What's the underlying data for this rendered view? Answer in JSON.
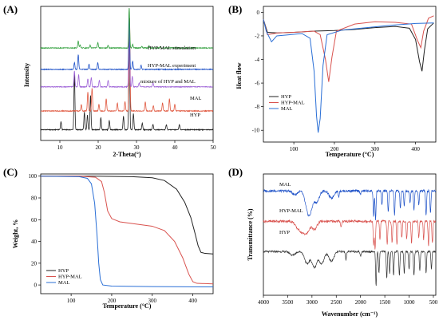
{
  "panels": [
    {
      "label": "(A)",
      "chart_data": {
        "type": "line",
        "xlabel": "2-Theta(°)",
        "ylabel": "Intensity",
        "xlim": [
          5,
          50
        ],
        "x_ticks": [
          10,
          20,
          30,
          40,
          50
        ],
        "series": [
          {
            "name": "HYP",
            "color": "#222222",
            "baseline": 0.08,
            "peaks": [
              [
                10.3,
                0.06
              ],
              [
                13.8,
                0.42
              ],
              [
                16.4,
                0.13
              ],
              [
                17.2,
                0.11
              ],
              [
                18.0,
                0.26
              ],
              [
                20.7,
                0.09
              ],
              [
                22.9,
                0.07
              ],
              [
                26.6,
                0.1
              ],
              [
                28.1,
                0.9
              ],
              [
                29.2,
                0.12
              ],
              [
                31.5,
                0.05
              ],
              [
                34.3,
                0.04
              ],
              [
                37.8,
                0.04
              ],
              [
                41.2,
                0.04
              ]
            ]
          },
          {
            "name": "MAL",
            "color": "#e0573e",
            "baseline": 0.22,
            "peaks": [
              [
                15.6,
                0.05
              ],
              [
                17.3,
                0.14
              ],
              [
                18.4,
                0.17
              ],
              [
                20.2,
                0.05
              ],
              [
                22.1,
                0.09
              ],
              [
                25.0,
                0.06
              ],
              [
                27.0,
                0.07
              ],
              [
                28.2,
                0.7
              ],
              [
                32.3,
                0.07
              ],
              [
                34.4,
                0.04
              ],
              [
                36.8,
                0.06
              ],
              [
                38.6,
                0.09
              ],
              [
                40.0,
                0.05
              ]
            ]
          },
          {
            "name": "mixture of HYP and MAL",
            "color": "#a066d8",
            "baseline": 0.4,
            "peaks": [
              [
                13.8,
                0.12
              ],
              [
                14.9,
                0.09
              ],
              [
                17.3,
                0.06
              ],
              [
                18.2,
                0.07
              ],
              [
                20.3,
                0.05
              ],
              [
                22.6,
                0.05
              ],
              [
                28.1,
                0.5
              ],
              [
                28.9,
                0.08
              ],
              [
                30.7,
                0.03
              ],
              [
                34.3,
                0.03
              ]
            ]
          },
          {
            "name": "HYP-MAL experiment",
            "color": "#1f52c8",
            "baseline": 0.53,
            "peaks": [
              [
                13.8,
                0.05
              ],
              [
                14.8,
                0.11
              ],
              [
                17.6,
                0.04
              ],
              [
                19.9,
                0.05
              ],
              [
                28.1,
                0.42
              ],
              [
                29.0,
                0.06
              ],
              [
                31.2,
                0.03
              ]
            ]
          },
          {
            "name": "HYP-MAL stimulation",
            "color": "#2e9e3a",
            "baseline": 0.69,
            "peaks": [
              [
                14.8,
                0.05
              ],
              [
                15.3,
                0.02
              ],
              [
                17.9,
                0.02
              ],
              [
                19.9,
                0.04
              ],
              [
                22.6,
                0.02
              ],
              [
                28.1,
                0.3
              ],
              [
                29.0,
                0.03
              ],
              [
                31.4,
                0.015
              ],
              [
                33.3,
                0.015
              ],
              [
                36.2,
                0.01
              ]
            ]
          }
        ],
        "annotations": [
          "HYP-MAL stimulation",
          "HYP-MAL experiment",
          "mixture of HYP and MAL",
          "MAL",
          "HYP"
        ]
      }
    },
    {
      "label": "(B)",
      "chart_data": {
        "type": "line",
        "xlabel": "Temperature (°C)",
        "ylabel": "Heat flow",
        "xlim": [
          25,
          450
        ],
        "ylim": [
          -11,
          0.5
        ],
        "x_ticks": [
          100,
          200,
          300,
          400
        ],
        "y_ticks": [
          0,
          -2,
          -4,
          -6,
          -8,
          -10
        ],
        "legend_position": "bottom-left",
        "series": [
          {
            "name": "HYP",
            "color": "#222222",
            "points": [
              [
                25,
                -0.6
              ],
              [
                35,
                -1.7
              ],
              [
                60,
                -1.75
              ],
              [
                100,
                -1.7
              ],
              [
                150,
                -1.6
              ],
              [
                200,
                -1.55
              ],
              [
                250,
                -1.45
              ],
              [
                300,
                -1.3
              ],
              [
                350,
                -1.2
              ],
              [
                385,
                -1.35
              ],
              [
                400,
                -2.3
              ],
              [
                410,
                -4.2
              ],
              [
                416,
                -5.0
              ],
              [
                422,
                -3.2
              ],
              [
                430,
                -1.4
              ],
              [
                445,
                -0.9
              ]
            ]
          },
          {
            "name": "HYP-MAL",
            "color": "#d9534f",
            "points": [
              [
                25,
                -0.6
              ],
              [
                35,
                -1.9
              ],
              [
                60,
                -1.75
              ],
              [
                100,
                -1.7
              ],
              [
                150,
                -1.6
              ],
              [
                165,
                -1.9
              ],
              [
                178,
                -4.0
              ],
              [
                186,
                -5.9
              ],
              [
                194,
                -3.8
              ],
              [
                205,
                -1.6
              ],
              [
                250,
                -1.0
              ],
              [
                300,
                -0.8
              ],
              [
                350,
                -0.85
              ],
              [
                390,
                -1.0
              ],
              [
                405,
                -2.4
              ],
              [
                413,
                -3.0
              ],
              [
                420,
                -1.6
              ],
              [
                432,
                -0.5
              ],
              [
                445,
                -0.3
              ]
            ]
          },
          {
            "name": "MAL",
            "color": "#2a6fd6",
            "points": [
              [
                25,
                -0.6
              ],
              [
                32,
                -1.6
              ],
              [
                45,
                -2.5
              ],
              [
                58,
                -2.0
              ],
              [
                90,
                -1.9
              ],
              [
                120,
                -1.8
              ],
              [
                140,
                -2.2
              ],
              [
                150,
                -5.0
              ],
              [
                156,
                -8.8
              ],
              [
                160,
                -10.2
              ],
              [
                165,
                -9.0
              ],
              [
                172,
                -4.5
              ],
              [
                182,
                -1.9
              ],
              [
                220,
                -1.5
              ],
              [
                280,
                -1.3
              ],
              [
                340,
                -1.1
              ],
              [
                400,
                -0.95
              ],
              [
                445,
                -0.9
              ]
            ]
          }
        ]
      }
    },
    {
      "label": "(C)",
      "chart_data": {
        "type": "line",
        "xlabel": "Temperature (°C)",
        "ylabel": "Weight, %",
        "xlim": [
          25,
          450
        ],
        "ylim": [
          -8,
          102
        ],
        "x_ticks": [
          100,
          200,
          300,
          400
        ],
        "y_ticks": [
          0,
          20,
          40,
          60,
          80,
          100
        ],
        "legend_position": "bottom-left",
        "series": [
          {
            "name": "HYP",
            "color": "#222222",
            "points": [
              [
                25,
                100
              ],
              [
                150,
                100
              ],
              [
                250,
                99.5
              ],
              [
                300,
                98.5
              ],
              [
                330,
                96
              ],
              [
                360,
                88
              ],
              [
                380,
                76
              ],
              [
                395,
                62
              ],
              [
                405,
                48
              ],
              [
                413,
                36
              ],
              [
                420,
                30
              ],
              [
                430,
                29
              ],
              [
                450,
                28.5
              ]
            ]
          },
          {
            "name": "HYP-MAL",
            "color": "#d9534f",
            "points": [
              [
                25,
                100
              ],
              [
                120,
                100
              ],
              [
                160,
                99
              ],
              [
                175,
                95
              ],
              [
                182,
                85
              ],
              [
                190,
                68
              ],
              [
                200,
                61
              ],
              [
                220,
                58
              ],
              [
                260,
                56
              ],
              [
                300,
                54
              ],
              [
                330,
                50
              ],
              [
                355,
                40
              ],
              [
                375,
                25
              ],
              [
                390,
                10
              ],
              [
                400,
                3
              ],
              [
                410,
                1.5
              ],
              [
                450,
                1
              ]
            ]
          },
          {
            "name": "MAL",
            "color": "#2a6fd6",
            "points": [
              [
                25,
                100
              ],
              [
                120,
                99.5
              ],
              [
                140,
                98
              ],
              [
                150,
                93
              ],
              [
                158,
                75
              ],
              [
                164,
                45
              ],
              [
                168,
                20
              ],
              [
                172,
                5
              ],
              [
                178,
                0
              ],
              [
                200,
                -1
              ],
              [
                300,
                -1.5
              ],
              [
                450,
                -1.8
              ]
            ]
          }
        ]
      }
    },
    {
      "label": "(D)",
      "chart_data": {
        "type": "line",
        "xlabel": "Wavenumber (cm⁻¹)",
        "ylabel": "Transmittance (%)",
        "xlim": [
          4000,
          450
        ],
        "x_ticks": [
          4000,
          3500,
          3000,
          2500,
          2000,
          1500,
          1000,
          500
        ],
        "series": [
          {
            "name": "MAL",
            "color": "#1f52c8",
            "baseline": 0.86,
            "noise": 0.02,
            "peaks": [
              [
                3350,
                0.03
              ],
              [
                3100,
                0.12
              ],
              [
                3030,
                0.14
              ],
              [
                2900,
                0.09
              ],
              [
                2600,
                0.06
              ],
              [
                2450,
                0.05
              ],
              [
                2000,
                0.03
              ],
              [
                1730,
                0.22
              ],
              [
                1690,
                0.24
              ],
              [
                1560,
                0.12
              ],
              [
                1430,
                0.18
              ],
              [
                1300,
                0.2
              ],
              [
                1180,
                0.14
              ],
              [
                1100,
                0.12
              ],
              [
                980,
                0.1
              ],
              [
                900,
                0.16
              ],
              [
                800,
                0.12
              ],
              [
                650,
                0.2
              ],
              [
                560,
                0.18
              ]
            ]
          },
          {
            "name": "HYP-MAL",
            "color": "#d9534f",
            "baseline": 0.61,
            "noise": 0.02,
            "peaks": [
              [
                3300,
                0.05
              ],
              [
                3200,
                0.08
              ],
              [
                3100,
                0.09
              ],
              [
                2950,
                0.07
              ],
              [
                2400,
                0.05
              ],
              [
                1730,
                0.2
              ],
              [
                1700,
                0.23
              ],
              [
                1600,
                0.15
              ],
              [
                1450,
                0.2
              ],
              [
                1350,
                0.18
              ],
              [
                1250,
                0.19
              ],
              [
                1150,
                0.14
              ],
              [
                1050,
                0.15
              ],
              [
                950,
                0.18
              ],
              [
                800,
                0.14
              ],
              [
                700,
                0.15
              ],
              [
                600,
                0.2
              ],
              [
                520,
                0.18
              ]
            ]
          },
          {
            "name": "HYP",
            "color": "#333333",
            "baseline": 0.36,
            "noise": 0.015,
            "peaks": [
              [
                3400,
                0.03
              ],
              [
                3100,
                0.1
              ],
              [
                2950,
                0.13
              ],
              [
                2800,
                0.1
              ],
              [
                2600,
                0.08
              ],
              [
                2300,
                0.07
              ],
              [
                2000,
                0.04
              ],
              [
                1680,
                0.28
              ],
              [
                1620,
                0.18
              ],
              [
                1460,
                0.22
              ],
              [
                1400,
                0.18
              ],
              [
                1320,
                0.2
              ],
              [
                1200,
                0.2
              ],
              [
                1100,
                0.18
              ],
              [
                1000,
                0.15
              ],
              [
                900,
                0.2
              ],
              [
                780,
                0.16
              ],
              [
                650,
                0.18
              ],
              [
                540,
                0.14
              ]
            ]
          }
        ],
        "annotations": [
          "MAL",
          "HYP-MAL",
          "HYP"
        ]
      }
    }
  ]
}
